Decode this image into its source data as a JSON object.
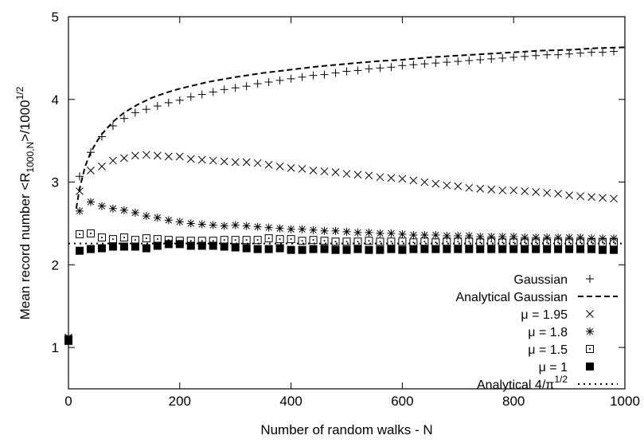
{
  "chart_data": {
    "type": "scatter",
    "xlabel": "Number of random walks - N",
    "ylabel": {
      "main": "Mean record number <R",
      "sub": "1000,N",
      "mid": ">/1000",
      "sup": "1/2"
    },
    "xlim": [
      0,
      1000
    ],
    "ylim": [
      0.5,
      5
    ],
    "xticks": [
      0,
      200,
      400,
      600,
      800,
      1000
    ],
    "yticks": [
      1,
      2,
      3,
      4,
      5
    ],
    "grid": false,
    "legend_position": "bottom-right",
    "series": [
      {
        "name": "Gaussian",
        "marker": "plus",
        "x": [
          0,
          20,
          40,
          60,
          80,
          100,
          120,
          140,
          160,
          180,
          200,
          220,
          240,
          260,
          280,
          300,
          320,
          340,
          360,
          380,
          400,
          420,
          440,
          460,
          480,
          500,
          520,
          540,
          560,
          580,
          600,
          620,
          640,
          660,
          680,
          700,
          720,
          740,
          760,
          780,
          800,
          820,
          840,
          860,
          880,
          900,
          920,
          940,
          960,
          980
        ],
        "y": [
          1.13,
          3.07,
          3.36,
          3.55,
          3.68,
          3.77,
          3.84,
          3.88,
          3.92,
          3.96,
          3.99,
          4.03,
          4.06,
          4.09,
          4.12,
          4.14,
          4.16,
          4.19,
          4.21,
          4.23,
          4.25,
          4.27,
          4.29,
          4.3,
          4.32,
          4.34,
          4.35,
          4.37,
          4.38,
          4.39,
          4.41,
          4.42,
          4.43,
          4.44,
          4.45,
          4.46,
          4.47,
          4.48,
          4.49,
          4.5,
          4.51,
          4.52,
          4.53,
          4.54,
          4.54,
          4.55,
          4.56,
          4.57,
          4.57,
          4.58
        ]
      },
      {
        "name": "Analytical Gaussian",
        "marker": "dashed-line",
        "x": [
          14,
          20,
          30,
          40,
          50,
          60,
          80,
          100,
          125,
          150,
          175,
          200,
          250,
          300,
          350,
          400,
          450,
          500,
          550,
          600,
          650,
          700,
          750,
          800,
          850,
          900,
          950,
          1000
        ],
        "y": [
          2.68,
          2.92,
          3.19,
          3.36,
          3.48,
          3.58,
          3.73,
          3.84,
          3.94,
          4.02,
          4.08,
          4.13,
          4.21,
          4.27,
          4.32,
          4.36,
          4.4,
          4.43,
          4.46,
          4.48,
          4.51,
          4.53,
          4.55,
          4.57,
          4.59,
          4.6,
          4.62,
          4.63
        ]
      },
      {
        "name": "μ = 1.95",
        "marker": "cross",
        "x": [
          0,
          20,
          40,
          60,
          80,
          100,
          120,
          140,
          160,
          180,
          200,
          220,
          240,
          260,
          280,
          300,
          320,
          340,
          360,
          380,
          400,
          420,
          440,
          460,
          480,
          500,
          520,
          540,
          560,
          580,
          600,
          620,
          640,
          660,
          680,
          700,
          720,
          740,
          760,
          780,
          800,
          820,
          840,
          860,
          880,
          900,
          920,
          940,
          960,
          980
        ],
        "y": [
          1.12,
          2.89,
          3.14,
          3.19,
          3.26,
          3.29,
          3.32,
          3.33,
          3.32,
          3.31,
          3.31,
          3.28,
          3.27,
          3.26,
          3.25,
          3.24,
          3.24,
          3.23,
          3.21,
          3.19,
          3.17,
          3.16,
          3.14,
          3.13,
          3.12,
          3.1,
          3.09,
          3.08,
          3.06,
          3.05,
          3.04,
          3.02,
          3.0,
          2.98,
          2.96,
          2.95,
          2.93,
          2.92,
          2.91,
          2.9,
          2.9,
          2.89,
          2.88,
          2.87,
          2.86,
          2.84,
          2.83,
          2.82,
          2.81,
          2.8
        ]
      },
      {
        "name": "μ = 1.8",
        "marker": "asterisk",
        "x": [
          0,
          20,
          40,
          60,
          80,
          100,
          120,
          140,
          160,
          180,
          200,
          220,
          240,
          260,
          280,
          300,
          320,
          340,
          360,
          380,
          400,
          420,
          440,
          460,
          480,
          500,
          520,
          540,
          560,
          580,
          600,
          620,
          640,
          660,
          680,
          700,
          720,
          740,
          760,
          780,
          800,
          820,
          840,
          860,
          880,
          900,
          920,
          940,
          960,
          980
        ],
        "y": [
          1.11,
          2.65,
          2.76,
          2.71,
          2.68,
          2.66,
          2.63,
          2.59,
          2.57,
          2.54,
          2.52,
          2.5,
          2.49,
          2.48,
          2.47,
          2.48,
          2.47,
          2.46,
          2.45,
          2.44,
          2.43,
          2.43,
          2.42,
          2.41,
          2.41,
          2.4,
          2.39,
          2.39,
          2.38,
          2.38,
          2.37,
          2.36,
          2.36,
          2.36,
          2.35,
          2.35,
          2.35,
          2.34,
          2.34,
          2.34,
          2.34,
          2.33,
          2.33,
          2.33,
          2.33,
          2.33,
          2.33,
          2.32,
          2.32,
          2.32
        ]
      },
      {
        "name": "μ = 1.5",
        "marker": "dotted-square",
        "x": [
          0,
          20,
          40,
          60,
          80,
          100,
          120,
          140,
          160,
          180,
          200,
          220,
          240,
          260,
          280,
          300,
          320,
          340,
          360,
          380,
          400,
          420,
          440,
          460,
          480,
          500,
          520,
          540,
          560,
          580,
          600,
          620,
          640,
          660,
          680,
          700,
          720,
          740,
          760,
          780,
          800,
          820,
          840,
          860,
          880,
          900,
          920,
          940,
          960,
          980
        ],
        "y": [
          1.1,
          2.37,
          2.38,
          2.33,
          2.31,
          2.33,
          2.3,
          2.32,
          2.31,
          2.3,
          2.29,
          2.29,
          2.29,
          2.29,
          2.3,
          2.3,
          2.3,
          2.3,
          2.32,
          2.31,
          2.31,
          2.29,
          2.3,
          2.29,
          2.28,
          2.28,
          2.28,
          2.29,
          2.28,
          2.28,
          2.28,
          2.27,
          2.28,
          2.27,
          2.28,
          2.28,
          2.28,
          2.27,
          2.28,
          2.27,
          2.27,
          2.27,
          2.27,
          2.27,
          2.27,
          2.27,
          2.27,
          2.27,
          2.27,
          2.27
        ]
      },
      {
        "name": "μ = 1",
        "marker": "filled-square",
        "x": [
          0,
          20,
          40,
          60,
          80,
          100,
          120,
          140,
          160,
          180,
          200,
          220,
          240,
          260,
          280,
          300,
          320,
          340,
          360,
          380,
          400,
          420,
          440,
          460,
          480,
          500,
          520,
          540,
          560,
          580,
          600,
          620,
          640,
          660,
          680,
          700,
          720,
          740,
          760,
          780,
          800,
          820,
          840,
          860,
          880,
          900,
          920,
          940,
          960,
          980
        ],
        "y": [
          1.08,
          2.17,
          2.19,
          2.2,
          2.22,
          2.22,
          2.22,
          2.2,
          2.23,
          2.25,
          2.25,
          2.23,
          2.23,
          2.23,
          2.22,
          2.21,
          2.2,
          2.19,
          2.19,
          2.2,
          2.18,
          2.18,
          2.19,
          2.19,
          2.18,
          2.18,
          2.19,
          2.18,
          2.18,
          2.19,
          2.18,
          2.19,
          2.19,
          2.19,
          2.19,
          2.19,
          2.19,
          2.19,
          2.19,
          2.19,
          2.19,
          2.19,
          2.19,
          2.19,
          2.19,
          2.19,
          2.19,
          2.19,
          2.18,
          2.18
        ]
      },
      {
        "name": "Analytical 4/π^1/2",
        "label_main": "Analytical 4/π",
        "label_sup": "1/2",
        "marker": "dotted-line",
        "x": [
          0,
          1000
        ],
        "y": [
          2.257,
          2.257
        ]
      }
    ]
  }
}
